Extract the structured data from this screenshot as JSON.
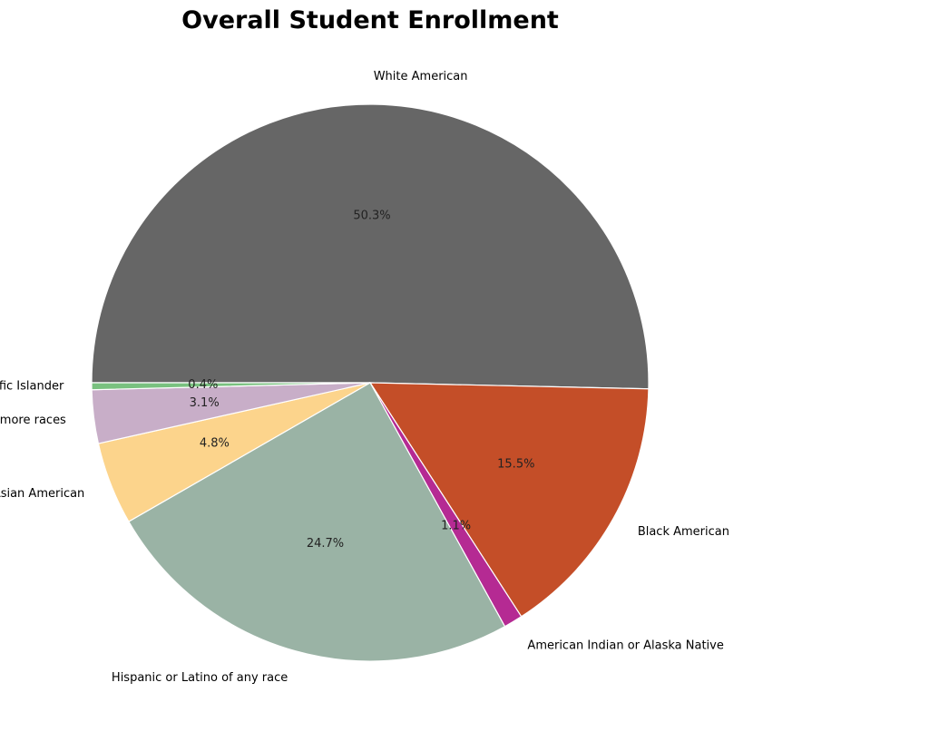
{
  "chart_data": {
    "type": "pie",
    "title": "Overall Student Enrollment",
    "start_angle_deg": 180,
    "direction": "clockwise",
    "slices": [
      {
        "label": "White American",
        "value": 50.3,
        "pct_label": "50.3%",
        "color": "#666666"
      },
      {
        "label": "Black American",
        "value": 15.5,
        "pct_label": "15.5%",
        "color": "#c44e28"
      },
      {
        "label": "American Indian or Alaska Native",
        "value": 1.1,
        "pct_label": "1.1%",
        "color": "#b52a93"
      },
      {
        "label": "Hispanic or Latino of any race",
        "value": 24.7,
        "pct_label": "24.7%",
        "color": "#9ab3a5"
      },
      {
        "label": "Asian American",
        "value": 4.8,
        "pct_label": "4.8%",
        "color": "#fcd48c"
      },
      {
        "label": "Two or more races",
        "value": 3.1,
        "pct_label": "3.1%",
        "color": "#c8aec8"
      },
      {
        "label": "Native Hawaiian or other Pacific Islander",
        "value": 0.4,
        "pct_label": "0.4%",
        "color": "#79c17f"
      }
    ]
  }
}
